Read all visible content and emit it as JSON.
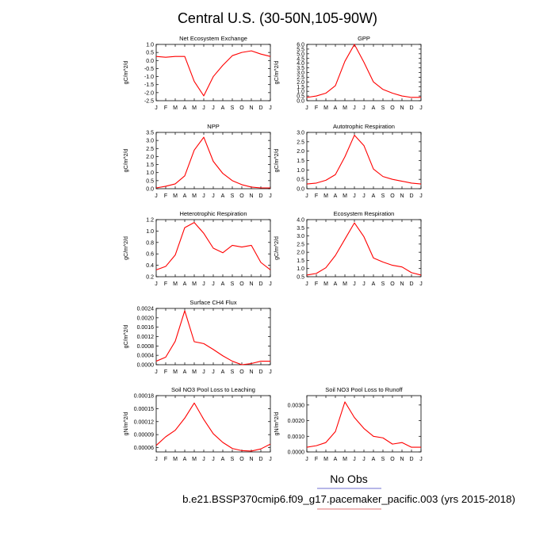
{
  "title": "Central U.S. (30-50N,105-90W)",
  "legend": {
    "obs_label": "No Obs",
    "case_label": "b.e21.BSSP370cmip6.f09_g17.pacemaker_pacific.003 (yrs 2015-2018)",
    "obs_line_color": "#6f6fd0",
    "case_line_color": "#e07070"
  },
  "series_color": "#ff0000",
  "chart_data": [
    {
      "type": "line",
      "title": "Net Ecosystem Exchange",
      "ylabel": "gC/m^2/d",
      "categories": [
        "J",
        "F",
        "M",
        "A",
        "M",
        "J",
        "J",
        "A",
        "S",
        "O",
        "N",
        "D",
        "J"
      ],
      "values": [
        0.25,
        0.2,
        0.25,
        0.25,
        -1.3,
        -2.2,
        -1.0,
        -0.3,
        0.3,
        0.5,
        0.6,
        0.4,
        0.25
      ],
      "ylim": [
        -2.5,
        1.0
      ],
      "yticks": [
        -2.5,
        -2.0,
        -1.5,
        -1.0,
        -0.5,
        0.0,
        0.5,
        1.0
      ],
      "ytick_labels": [
        "-2.5",
        "-2.0",
        "-1.5",
        "-1.0",
        "-0.5",
        "0.0",
        "0.5",
        "1.0"
      ]
    },
    {
      "type": "line",
      "title": "GPP",
      "ylabel": "gC/m^2/d",
      "categories": [
        "J",
        "F",
        "M",
        "A",
        "M",
        "J",
        "J",
        "A",
        "S",
        "O",
        "N",
        "D",
        "J"
      ],
      "values": [
        0.35,
        0.5,
        0.8,
        1.6,
        4.2,
        6.0,
        4.1,
        2.0,
        1.2,
        0.8,
        0.5,
        0.35,
        0.35
      ],
      "ylim": [
        0,
        6.0
      ],
      "yticks": [
        0,
        0.5,
        1.0,
        1.5,
        2.0,
        2.5,
        3.0,
        3.5,
        4.0,
        4.5,
        5.0,
        5.5,
        6.0
      ],
      "ytick_labels": [
        "0.0",
        "0.5",
        "1.0",
        "1.5",
        "2.0",
        "2.5",
        "3.0",
        "3.5",
        "4.0",
        "4.5",
        "5.0",
        "5.5",
        "6.0"
      ]
    },
    {
      "type": "line",
      "title": "NPP",
      "ylabel": "gC/m^2/d",
      "categories": [
        "J",
        "F",
        "M",
        "A",
        "M",
        "J",
        "J",
        "A",
        "S",
        "O",
        "N",
        "D",
        "J"
      ],
      "values": [
        0.05,
        0.15,
        0.3,
        0.8,
        2.4,
        3.2,
        1.7,
        0.95,
        0.5,
        0.25,
        0.1,
        0.05,
        0.05
      ],
      "ylim": [
        0,
        3.5
      ],
      "yticks": [
        0,
        0.5,
        1.0,
        1.5,
        2.0,
        2.5,
        3.0,
        3.5
      ],
      "ytick_labels": [
        "0.0",
        "0.5",
        "1.0",
        "1.5",
        "2.0",
        "2.5",
        "3.0",
        "3.5"
      ]
    },
    {
      "type": "line",
      "title": "Autotrophic Respiration",
      "ylabel": "gC/m^2/d",
      "categories": [
        "J",
        "F",
        "M",
        "A",
        "M",
        "J",
        "J",
        "A",
        "S",
        "O",
        "N",
        "D",
        "J"
      ],
      "values": [
        0.25,
        0.3,
        0.45,
        0.75,
        1.7,
        2.85,
        2.3,
        1.05,
        0.65,
        0.5,
        0.4,
        0.3,
        0.25
      ],
      "ylim": [
        0,
        3.0
      ],
      "yticks": [
        0,
        0.5,
        1.0,
        1.5,
        2.0,
        2.5,
        3.0
      ],
      "ytick_labels": [
        "0.0",
        "0.5",
        "1.0",
        "1.5",
        "2.0",
        "2.5",
        "3.0"
      ]
    },
    {
      "type": "line",
      "title": "Heterotrophic Respiration",
      "ylabel": "gC/m^2/d",
      "categories": [
        "J",
        "F",
        "M",
        "A",
        "M",
        "J",
        "J",
        "A",
        "S",
        "O",
        "N",
        "D",
        "J"
      ],
      "values": [
        0.32,
        0.38,
        0.58,
        1.06,
        1.15,
        0.96,
        0.7,
        0.62,
        0.75,
        0.72,
        0.75,
        0.45,
        0.32
      ],
      "ylim": [
        0.2,
        1.2
      ],
      "yticks": [
        0.2,
        0.4,
        0.6,
        0.8,
        1.0,
        1.2
      ],
      "ytick_labels": [
        "0.2",
        "0.4",
        "0.6",
        "0.8",
        "1.0",
        "1.2"
      ]
    },
    {
      "type": "line",
      "title": "Ecosystem Respiration",
      "ylabel": "gC/m^2/d",
      "categories": [
        "J",
        "F",
        "M",
        "A",
        "M",
        "J",
        "J",
        "A",
        "S",
        "O",
        "N",
        "D",
        "J"
      ],
      "values": [
        0.6,
        0.7,
        1.05,
        1.8,
        2.8,
        3.8,
        2.95,
        1.65,
        1.4,
        1.2,
        1.1,
        0.75,
        0.6
      ],
      "ylim": [
        0.5,
        4.0
      ],
      "yticks": [
        0.5,
        1.0,
        1.5,
        2.0,
        2.5,
        3.0,
        3.5,
        4.0
      ],
      "ytick_labels": [
        "0.5",
        "1.0",
        "1.5",
        "2.0",
        "2.5",
        "3.0",
        "3.5",
        "4.0"
      ]
    },
    {
      "type": "line",
      "title": "Surface CH4 Flux",
      "ylabel": "gC/m^2/d",
      "categories": [
        "J",
        "F",
        "M",
        "A",
        "M",
        "J",
        "J",
        "A",
        "S",
        "O",
        "N",
        "D",
        "J"
      ],
      "values": [
        0.00015,
        0.00032,
        0.001,
        0.0023,
        0.00098,
        0.0009,
        0.00065,
        0.00038,
        0.00015,
        0.0,
        5e-05,
        0.00015,
        0.00015
      ],
      "ylim": [
        0,
        0.0024
      ],
      "yticks": [
        0,
        0.0004,
        0.0008,
        0.0012,
        0.0016,
        0.002,
        0.0024
      ],
      "ytick_labels": [
        "0.0000",
        "0.0004",
        "0.0008",
        "0.0012",
        "0.0016",
        "0.0020",
        "0.0024"
      ]
    },
    {
      "type": "line",
      "title": "Soil NO3 Pool Loss to Leaching",
      "ylabel": "gN/m^2/d",
      "categories": [
        "J",
        "F",
        "M",
        "A",
        "M",
        "J",
        "J",
        "A",
        "S",
        "O",
        "N",
        "D",
        "J"
      ],
      "values": [
        6.5e-05,
        8.5e-05,
        0.0001,
        0.000128,
        0.000163,
        0.000125,
        9.2e-05,
        7.2e-05,
        5.8e-05,
        5.3e-05,
        5.2e-05,
        5.7e-05,
        6.8e-05
      ],
      "ylim": [
        5e-05,
        0.00018
      ],
      "yticks": [
        6e-05,
        9e-05,
        0.00012,
        0.00015,
        0.00018
      ],
      "ytick_labels": [
        "0.00006",
        "0.00009",
        "0.00012",
        "0.00015",
        "0.00018"
      ]
    },
    {
      "type": "line",
      "title": "Soil NO3 Pool Loss to Runoff",
      "ylabel": "gN/m^2/d",
      "categories": [
        "J",
        "F",
        "M",
        "A",
        "M",
        "J",
        "J",
        "A",
        "S",
        "O",
        "N",
        "D",
        "J"
      ],
      "values": [
        0.0003,
        0.0004,
        0.0006,
        0.0013,
        0.0032,
        0.0022,
        0.0015,
        0.001,
        0.0009,
        0.0005,
        0.0006,
        0.0003,
        0.0003
      ],
      "ylim": [
        0,
        0.0036
      ],
      "yticks": [
        0,
        0.001,
        0.002,
        0.003
      ],
      "ytick_labels": [
        "0.0000",
        "0.0010",
        "0.0020",
        "0.0030"
      ]
    }
  ]
}
